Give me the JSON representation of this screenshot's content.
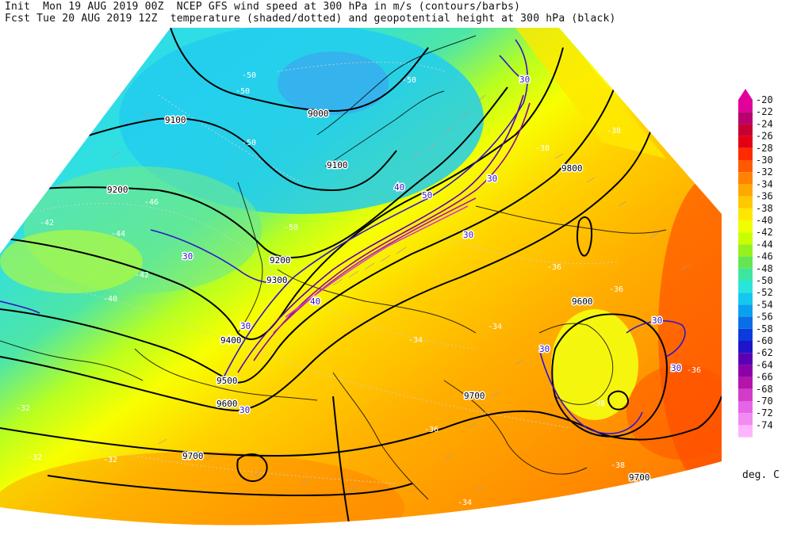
{
  "header": {
    "line1": "Init  Mon 19 AUG 2019 00Z  NCEP GFS wind speed at 300 hPa in m/s (contours/barbs)",
    "line2": "Fcst Tue 20 AUG 2019 12Z  temperature (shaded/dotted) and geopotential height at 300 hPa (black)"
  },
  "colorbar": {
    "unit": "deg. C",
    "levels": [
      {
        "label": "-20",
        "color": "#e0009a"
      },
      {
        "label": "-22",
        "color": "#b8006e"
      },
      {
        "label": "-24",
        "color": "#c80032"
      },
      {
        "label": "-26",
        "color": "#e40014"
      },
      {
        "label": "-28",
        "color": "#ff2a00"
      },
      {
        "label": "-30",
        "color": "#ff5a00"
      },
      {
        "label": "-32",
        "color": "#ff8200"
      },
      {
        "label": "-34",
        "color": "#ffa800"
      },
      {
        "label": "-36",
        "color": "#ffc800"
      },
      {
        "label": "-38",
        "color": "#ffe600"
      },
      {
        "label": "-40",
        "color": "#f0ff00"
      },
      {
        "label": "-42",
        "color": "#c8ff00"
      },
      {
        "label": "-44",
        "color": "#96f020"
      },
      {
        "label": "-46",
        "color": "#64e650"
      },
      {
        "label": "-48",
        "color": "#3ce6a0"
      },
      {
        "label": "-50",
        "color": "#28e6dc"
      },
      {
        "label": "-52",
        "color": "#14c8f0"
      },
      {
        "label": "-54",
        "color": "#0aa0f0"
      },
      {
        "label": "-56",
        "color": "#0a6ee6"
      },
      {
        "label": "-58",
        "color": "#0a3cdc"
      },
      {
        "label": "-60",
        "color": "#1e14c8"
      },
      {
        "label": "-62",
        "color": "#5a00b4"
      },
      {
        "label": "-64",
        "color": "#8c00aa"
      },
      {
        "label": "-66",
        "color": "#b414aa"
      },
      {
        "label": "-68",
        "color": "#d23cc8"
      },
      {
        "label": "-70",
        "color": "#e664e6"
      },
      {
        "label": "-72",
        "color": "#f08cf0"
      },
      {
        "label": "-74",
        "color": "#ffb4ff"
      }
    ]
  },
  "labels": {
    "height": [
      {
        "text": "9100"
      },
      {
        "text": "9000"
      },
      {
        "text": "9100"
      },
      {
        "text": "9200"
      },
      {
        "text": "9200"
      },
      {
        "text": "9300"
      },
      {
        "text": "9400"
      },
      {
        "text": "9500"
      },
      {
        "text": "9600"
      },
      {
        "text": "9700"
      },
      {
        "text": "9700"
      },
      {
        "text": "9700"
      },
      {
        "text": "9800"
      },
      {
        "text": "9600"
      }
    ],
    "wind": [
      {
        "text": "30"
      },
      {
        "text": "30"
      },
      {
        "text": "30"
      },
      {
        "text": "40"
      },
      {
        "text": "40"
      },
      {
        "text": "30"
      },
      {
        "text": "30"
      },
      {
        "text": "30"
      },
      {
        "text": "30"
      },
      {
        "text": "30"
      },
      {
        "text": "30"
      },
      {
        "text": "50"
      }
    ],
    "temperature": [
      {
        "text": "-50"
      },
      {
        "text": "-50"
      },
      {
        "text": "-50"
      },
      {
        "text": "-50"
      },
      {
        "text": "-50"
      },
      {
        "text": "-46"
      },
      {
        "text": "-44"
      },
      {
        "text": "-42"
      },
      {
        "text": "-42"
      },
      {
        "text": "-40"
      },
      {
        "text": "-38"
      },
      {
        "text": "-38"
      },
      {
        "text": "-36"
      },
      {
        "text": "-36"
      },
      {
        "text": "-34"
      },
      {
        "text": "-34"
      },
      {
        "text": "-32"
      },
      {
        "text": "-32"
      },
      {
        "text": "-32"
      },
      {
        "text": "-38"
      },
      {
        "text": "-36"
      },
      {
        "text": "-34"
      },
      {
        "text": "-38"
      },
      {
        "text": "-36"
      }
    ]
  }
}
